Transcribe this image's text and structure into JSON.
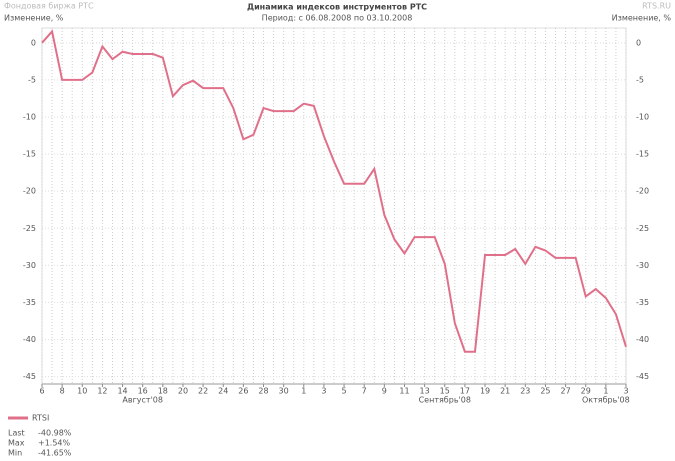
{
  "chart_data": {
    "type": "line",
    "title": "Динамика индексов инструментов РТС",
    "subtitle": "Период: с 06.08.2008 по 03.10.2008",
    "source_left": "Фондовая биржа РТС",
    "source_right": "RTS.RU",
    "ylabel_left": "Изменение, %",
    "ylabel_right": "Изменение, %",
    "categories": [
      "6",
      null,
      "8",
      null,
      "10",
      null,
      "12",
      null,
      "14",
      null,
      "16",
      null,
      "18",
      null,
      "20",
      null,
      "22",
      null,
      "24",
      null,
      "26",
      null,
      "28",
      null,
      "30",
      null,
      "1",
      null,
      "3",
      null,
      "5",
      null,
      "7",
      null,
      "9",
      null,
      "11",
      null,
      "13",
      null,
      "15",
      null,
      "17",
      null,
      "19",
      null,
      "21",
      null,
      "23",
      null,
      "25",
      null,
      "27",
      null,
      "29",
      null,
      "1",
      null,
      "3"
    ],
    "months": [
      {
        "label": "Август'08",
        "index": 10
      },
      {
        "label": "Сентябрь'08",
        "index": 40
      },
      {
        "label": "Октябрь'08",
        "index": 56
      }
    ],
    "series": [
      {
        "name": "RTSI",
        "color": "#e0708a",
        "values": [
          0,
          1.54,
          -5,
          -5,
          -5,
          -4,
          -0.5,
          -2.2,
          -1.2,
          -1.5,
          -1.5,
          -1.5,
          -2,
          -7.2,
          -5.7,
          -5.1,
          -6.1,
          -6.1,
          -6.1,
          -8.8,
          -13,
          -12.4,
          -8.8,
          -9.2,
          -9.2,
          -9.2,
          -8.2,
          -8.5,
          -12.6,
          -16,
          -19,
          -19,
          -19,
          -17,
          -23.2,
          -26.5,
          -28.4,
          -26.2,
          -26.2,
          -26.2,
          -29.8,
          -37.8,
          -41.65,
          -41.65,
          -28.6,
          -28.6,
          -28.6,
          -27.8,
          -29.8,
          -27.5,
          -28,
          -29,
          -29,
          -29,
          -34.2,
          -33.2,
          -34.4,
          -36.6,
          -40.98
        ]
      }
    ],
    "ylim": [
      -46,
      2
    ],
    "yticks": [
      0,
      -5,
      -10,
      -15,
      -20,
      -25,
      -30,
      -35,
      -40,
      -45
    ],
    "grid": true,
    "stats": [
      {
        "name": "Last",
        "text": "-40.98%"
      },
      {
        "name": "Max",
        "text": "+1.54%"
      },
      {
        "name": "Min",
        "text": "-41.65%"
      }
    ]
  }
}
